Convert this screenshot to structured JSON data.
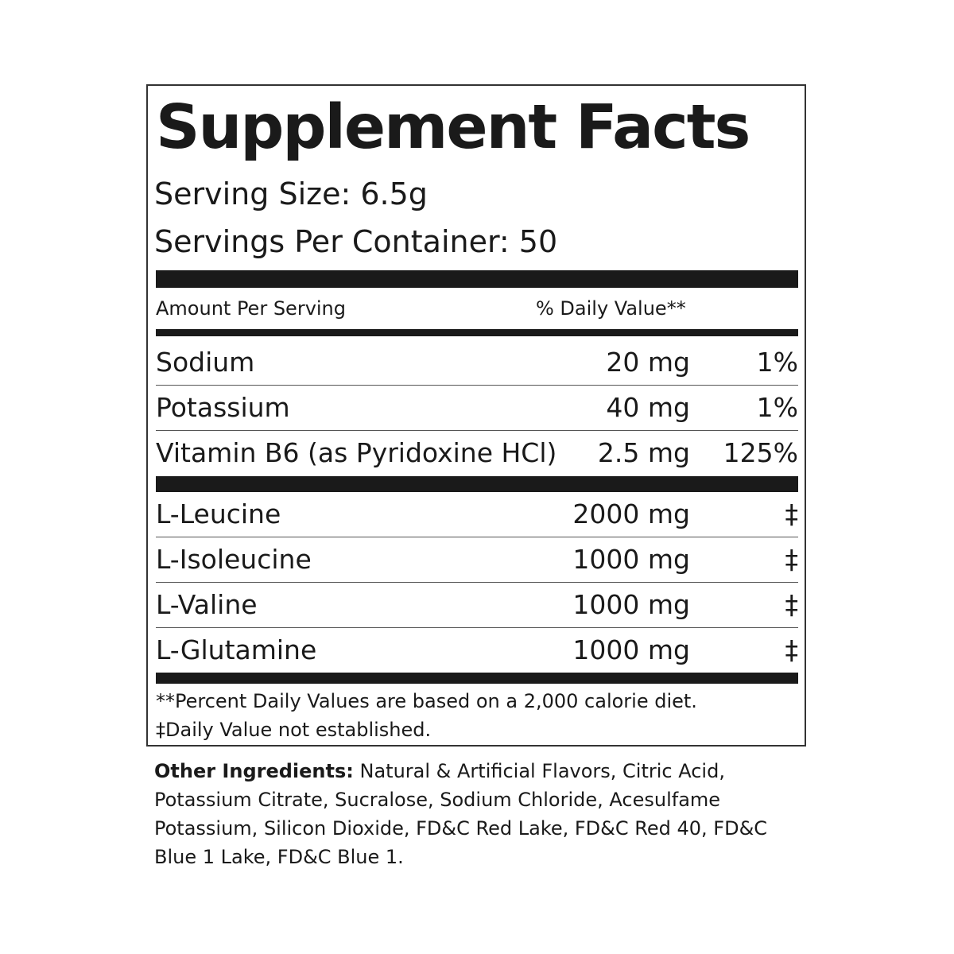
{
  "title": "Supplement Facts",
  "serving_size": "Serving Size: 6.5g",
  "servings_per_container": "Servings Per Container: 50",
  "header": {
    "amount": "Amount Per Serving",
    "dv": "% Daily Value**"
  },
  "group1": [
    {
      "name": "Sodium",
      "amount": "20 mg",
      "dv": "1%"
    },
    {
      "name": "Potassium",
      "amount": "40 mg",
      "dv": "1%"
    },
    {
      "name": "Vitamin B6 (as Pyridoxine HCl)",
      "amount": "2.5 mg",
      "dv": "125%"
    }
  ],
  "group2": [
    {
      "name": "L-Leucine",
      "amount": "2000 mg",
      "dv": "‡"
    },
    {
      "name": "L-Isoleucine",
      "amount": "1000 mg",
      "dv": "‡"
    },
    {
      "name": "L-Valine",
      "amount": "1000 mg",
      "dv": "‡"
    },
    {
      "name": "L-Glutamine",
      "amount": "1000 mg",
      "dv": "‡"
    }
  ],
  "footnotes": [
    "**Percent Daily Values are based on a 2,000 calorie diet.",
    "‡Daily Value not established."
  ],
  "other_ingredients": {
    "label": "Other Ingredients:",
    "text": " Natural & Artificial Flavors, Citric Acid, Potassium Citrate, Sucralose, Sodium Chloride, Acesulfame Potassium, Silicon Dioxide, FD&C Red Lake, FD&C Red 40, FD&C Blue 1 Lake, FD&C Blue 1."
  }
}
